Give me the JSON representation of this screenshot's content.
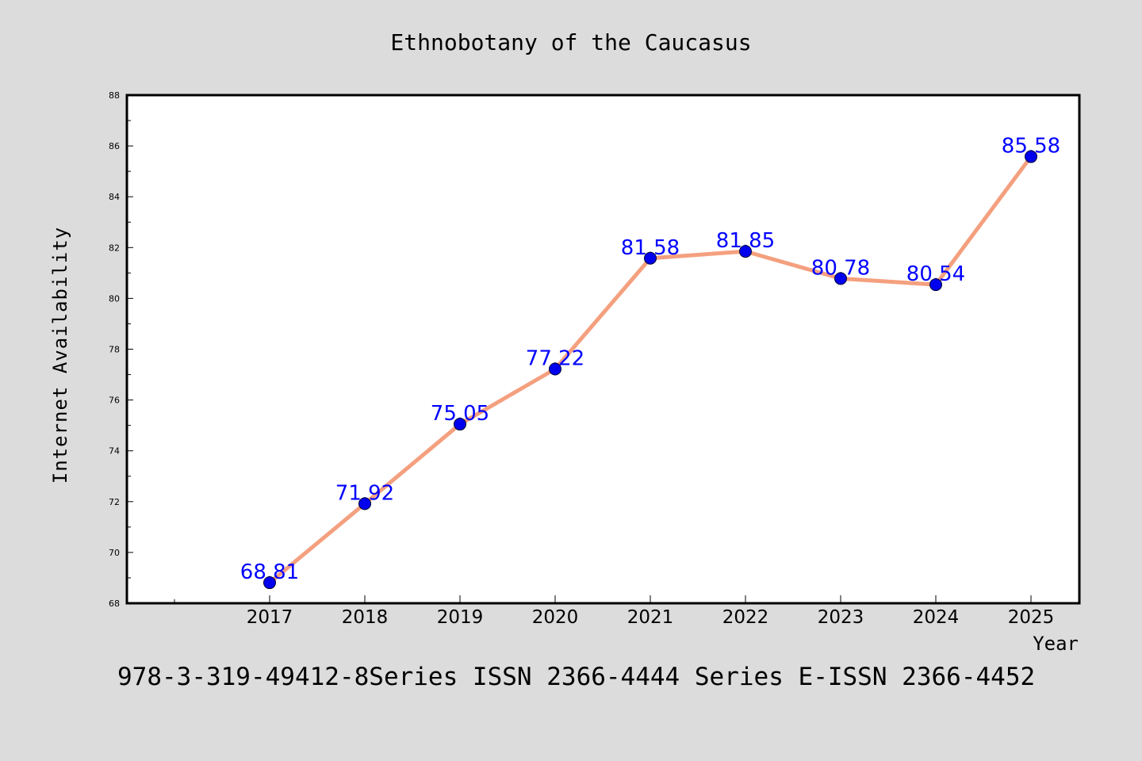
{
  "footer_text": "978-3-319-49412-8Series ISSN 2366-4444 Series E-ISSN 2366-4452",
  "colors": {
    "background": "#dcdcdc",
    "plot_background": "#ffffff",
    "line": "#f4a07f",
    "marker": "#0000ee",
    "data_label": "#0000ff"
  },
  "chart_data": {
    "type": "line",
    "title": "Ethnobotany of the Caucasus",
    "xlabel": "Year",
    "ylabel": "Internet Availability",
    "categories": [
      "2017",
      "2018",
      "2019",
      "2020",
      "2021",
      "2022",
      "2023",
      "2024",
      "2025"
    ],
    "values": [
      68.81,
      71.92,
      75.05,
      77.22,
      81.58,
      81.85,
      80.78,
      80.54,
      85.58
    ],
    "data_labels": [
      "68.81",
      "71.92",
      "75.05",
      "77.22",
      "81.58",
      "81.85",
      "80.78",
      "80.54",
      "85.58"
    ],
    "ylim": [
      68,
      88
    ],
    "yticks": [
      68,
      70,
      72,
      74,
      76,
      78,
      80,
      82,
      84,
      86,
      88
    ],
    "grid": false,
    "legend": "none"
  }
}
